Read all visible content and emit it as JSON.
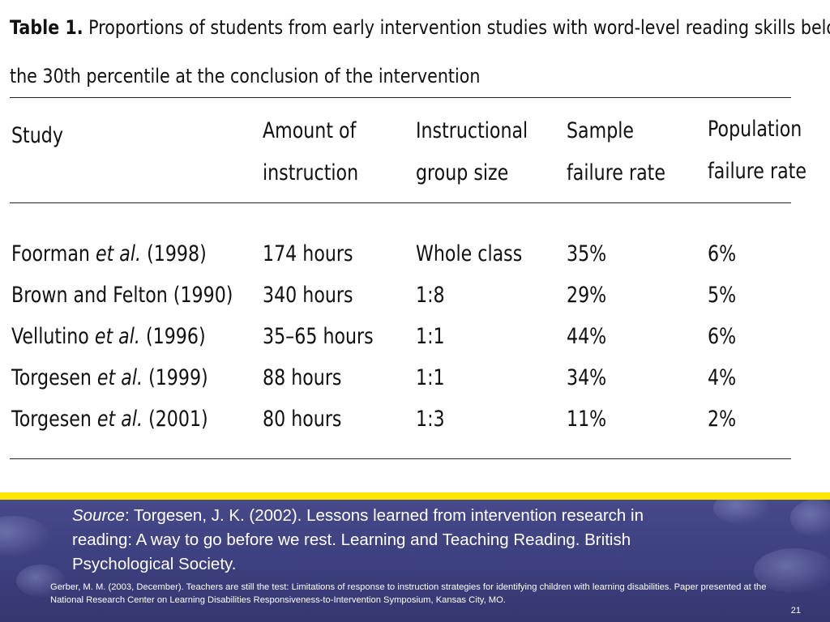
{
  "table": {
    "label": "Table 1.",
    "caption_line1": "Proportions of students from early intervention studies with word-level reading skills below",
    "caption_line2": "the 30th percentile at the conclusion of the intervention",
    "headers": {
      "study": "Study",
      "amount_1": "Amount of",
      "amount_2": "instruction",
      "group_1": "Instructional",
      "group_2": "group size",
      "sample_1": "Sample",
      "sample_2": "failure rate",
      "population_1": "Population",
      "population_2": "failure rate"
    },
    "rows": [
      {
        "study_prefix": "Foorman ",
        "study_etal": "et al.",
        "study_suffix": " (1998)",
        "amount": "174 hours",
        "group": "Whole class",
        "sample": "35%",
        "population": "6%"
      },
      {
        "study_prefix": "Brown and Felton (1990)",
        "study_etal": "",
        "study_suffix": "",
        "amount": "340 hours",
        "group": "1:8",
        "sample": "29%",
        "population": "5%"
      },
      {
        "study_prefix": "Vellutino ",
        "study_etal": "et al.",
        "study_suffix": " (1996)",
        "amount": "35–65 hours",
        "group": "1:1",
        "sample": "44%",
        "population": "6%"
      },
      {
        "study_prefix": "Torgesen ",
        "study_etal": "et al.",
        "study_suffix": " (1999)",
        "amount": "88 hours",
        "group": "1:1",
        "sample": "34%",
        "population": "4%"
      },
      {
        "study_prefix": "Torgesen ",
        "study_etal": "et al.",
        "study_suffix": " (2001)",
        "amount": "80 hours",
        "group": "1:3",
        "sample": "11%",
        "population": "2%"
      }
    ]
  },
  "source": {
    "label": "Source",
    "text": ": Torgesen, J. K. (2002). Lessons learned from intervention research in reading: A way to go before we rest. Learning and Teaching Reading. British Psychological Society."
  },
  "citation": "Gerber, M. M.  (2003, December). Teachers are still the test: Limitations of response to instruction strategies for identifying children with learning disabilities. Paper presented at the National Research Center on Learning Disabilities Responsiveness-to-Intervention Symposium, Kansas City, MO.",
  "slide_number": "21",
  "colors": {
    "accent_band": "#ffe600",
    "panel": "#3b3e7c",
    "text_on_panel": "#ffffff"
  }
}
